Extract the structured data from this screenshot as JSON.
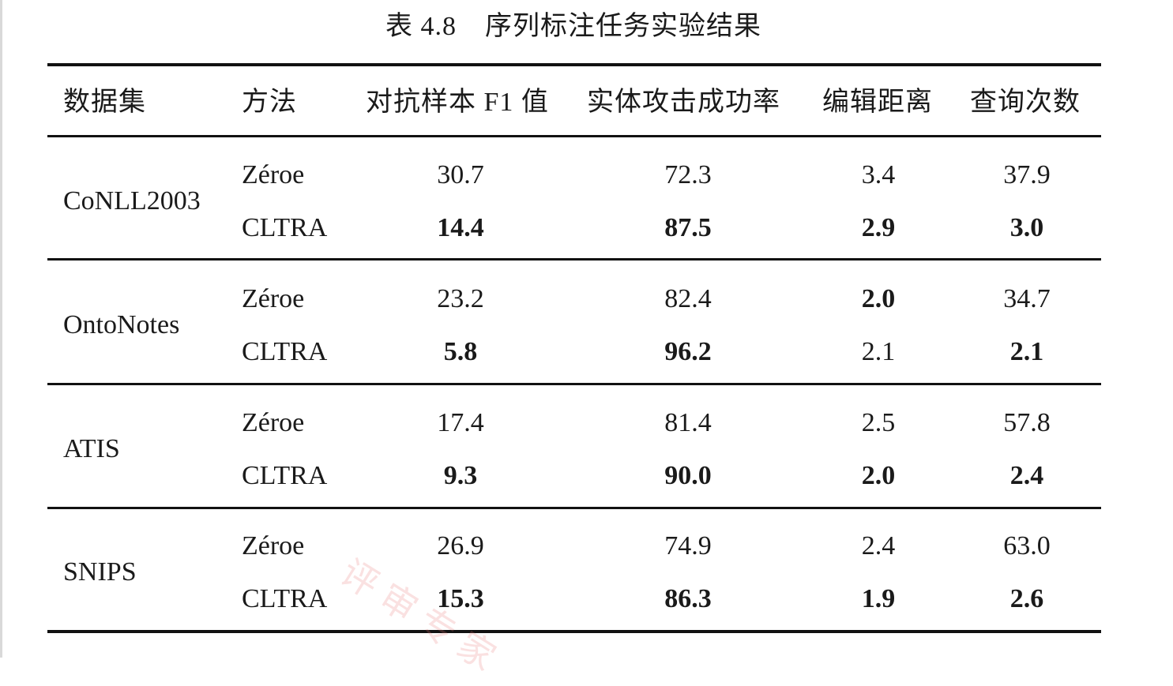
{
  "caption": {
    "number": "表 4.8",
    "title": "序列标注任务实验结果"
  },
  "table": {
    "headers": [
      "数据集",
      "方法",
      "对抗样本 F1 值",
      "实体攻击成功率",
      "编辑距离",
      "查询次数"
    ],
    "groups": [
      {
        "dataset": "CoNLL2003",
        "rows": [
          {
            "method": "Zéroe",
            "values": [
              "30.7",
              "72.3",
              "3.4",
              "37.9"
            ],
            "bold": [
              false,
              false,
              false,
              false
            ]
          },
          {
            "method": "CLTRA",
            "values": [
              "14.4",
              "87.5",
              "2.9",
              "3.0"
            ],
            "bold": [
              true,
              true,
              true,
              true
            ]
          }
        ]
      },
      {
        "dataset": "OntoNotes",
        "rows": [
          {
            "method": "Zéroe",
            "values": [
              "23.2",
              "82.4",
              "2.0",
              "34.7"
            ],
            "bold": [
              false,
              false,
              true,
              false
            ]
          },
          {
            "method": "CLTRA",
            "values": [
              "5.8",
              "96.2",
              "2.1",
              "2.1"
            ],
            "bold": [
              true,
              true,
              false,
              true
            ]
          }
        ]
      },
      {
        "dataset": "ATIS",
        "rows": [
          {
            "method": "Zéroe",
            "values": [
              "17.4",
              "81.4",
              "2.5",
              "57.8"
            ],
            "bold": [
              false,
              false,
              false,
              false
            ]
          },
          {
            "method": "CLTRA",
            "values": [
              "9.3",
              "90.0",
              "2.0",
              "2.4"
            ],
            "bold": [
              true,
              true,
              true,
              true
            ]
          }
        ]
      },
      {
        "dataset": "SNIPS",
        "rows": [
          {
            "method": "Zéroe",
            "values": [
              "26.9",
              "74.9",
              "2.4",
              "63.0"
            ],
            "bold": [
              false,
              false,
              false,
              false
            ]
          },
          {
            "method": "CLTRA",
            "values": [
              "15.3",
              "86.3",
              "1.9",
              "2.6"
            ],
            "bold": [
              true,
              true,
              true,
              true
            ]
          }
        ]
      }
    ]
  },
  "watermark": "评审专家"
}
